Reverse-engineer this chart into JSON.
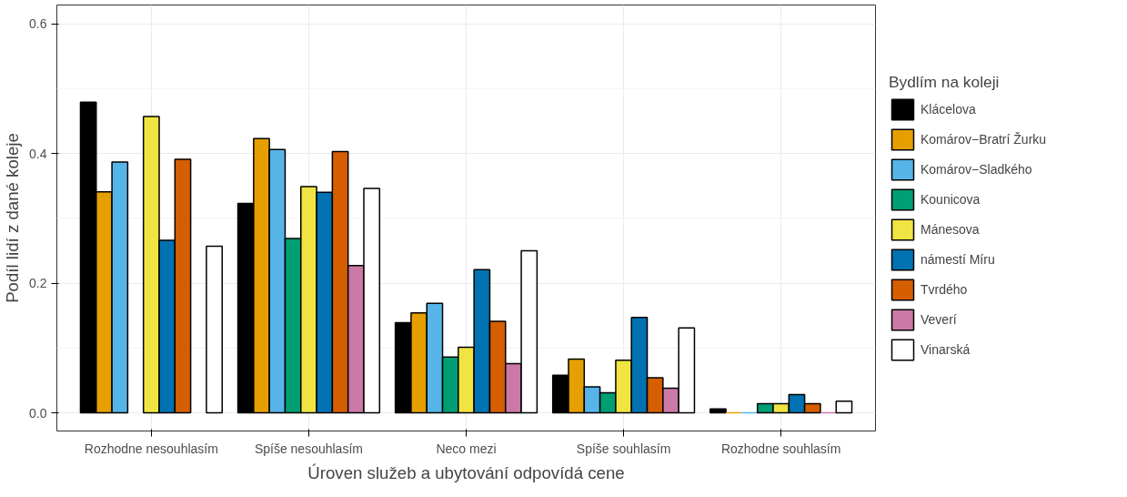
{
  "chart_data": {
    "type": "bar",
    "xlabel": "Úroven služeb a ubytování odpovídá cene",
    "ylabel": "Podíl lidí z dané koleje",
    "legend_title": "Bydlím na koleji",
    "categories": [
      "Rozhodne nesouhlasím",
      "Spíše nesouhlasím",
      "Neco mezi",
      "Spíše souhlasím",
      "Rozhodne souhlasím"
    ],
    "ylim": [
      -0.028,
      0.629
    ],
    "yticks": [
      {
        "value": 0,
        "label": "0.0"
      },
      0.2,
      0.4,
      0.6
    ],
    "grid": true,
    "legend": "right",
    "series": [
      {
        "name": "Klácelova",
        "color": "#000000",
        "values": [
          0.479,
          0.323,
          0.139,
          0.058,
          0.006
        ]
      },
      {
        "name": "Komárov−Bratrí Žurku",
        "color": "#e69f00",
        "values": [
          0.341,
          0.423,
          0.154,
          0.083,
          0
        ]
      },
      {
        "name": "Komárov−Sladkého",
        "color": "#56b4e9",
        "values": [
          0.387,
          0.406,
          0.169,
          0.04,
          0
        ]
      },
      {
        "name": "Kounicova",
        "color": "#009e73",
        "values": [
          null,
          0.269,
          0.086,
          0.031,
          0.014
        ]
      },
      {
        "name": "Mánesova",
        "color": "#f0e442",
        "values": [
          0.457,
          0.349,
          0.101,
          0.081,
          0.014
        ]
      },
      {
        "name": "námestí Míru",
        "color": "#0072b2",
        "values": [
          0.266,
          0.34,
          0.221,
          0.147,
          0.028
        ]
      },
      {
        "name": "Tvrdého",
        "color": "#d55e00",
        "values": [
          0.391,
          0.403,
          0.141,
          0.054,
          0.014
        ]
      },
      {
        "name": "Veverí",
        "color": "#cc79a7",
        "values": [
          null,
          0.227,
          0.076,
          0.038,
          0
        ]
      },
      {
        "name": "Vinarská",
        "color": "#ffffff",
        "values": [
          0.257,
          0.346,
          0.25,
          0.131,
          0.018
        ]
      }
    ]
  }
}
